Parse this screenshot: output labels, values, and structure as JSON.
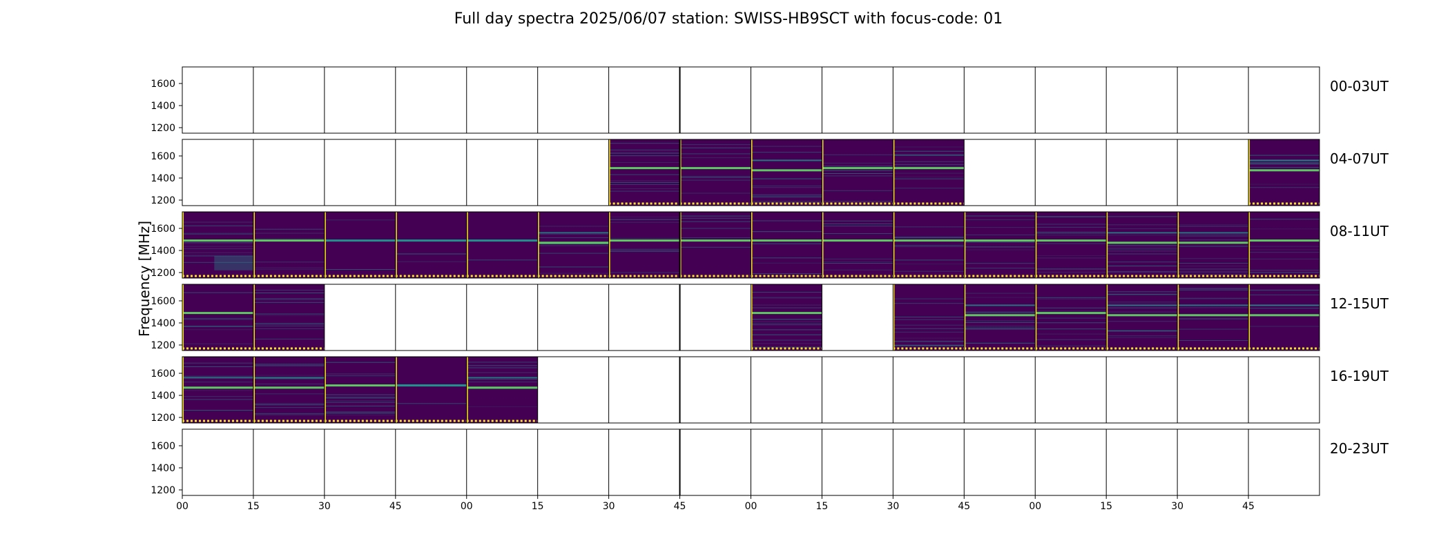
{
  "title": "Full day spectra 2025/06/07 station: SWISS-HB9SCT with focus-code: 01",
  "chart_data": {
    "type": "heatmap",
    "title": "Full day spectra 2025/06/07 station: SWISS-HB9SCT with focus-code: 01",
    "ylabel": "Frequency [MHz]",
    "ylim": [
      1150,
      1750
    ],
    "yticks": [
      1200,
      1400,
      1600
    ],
    "xtick_labels": [
      "00",
      "15",
      "30",
      "45",
      "00",
      "15",
      "30",
      "45",
      "00",
      "15",
      "30",
      "45",
      "00",
      "15",
      "30",
      "45"
    ],
    "row_labels": [
      "00-03UT",
      "04-07UT",
      "08-11UT",
      "12-15UT",
      "16-19UT",
      "20-23UT"
    ],
    "colormap": "viridis",
    "colors": {
      "background": "#440154",
      "mid": "#21918c",
      "high": "#fde725",
      "accent": "#5ec962"
    },
    "rows": [
      {
        "label": "00-03UT",
        "filled": [
          false,
          false,
          false,
          false,
          false,
          false,
          false,
          false,
          false,
          false,
          false,
          false,
          false,
          false,
          false,
          false
        ],
        "style": [
          0,
          0,
          0,
          0,
          0,
          0,
          0,
          0,
          0,
          0,
          0,
          0,
          0,
          0,
          0,
          0
        ]
      },
      {
        "label": "04-07UT",
        "filled": [
          false,
          false,
          false,
          false,
          false,
          false,
          true,
          true,
          true,
          true,
          true,
          false,
          false,
          false,
          false,
          true
        ],
        "style": [
          0,
          0,
          0,
          0,
          0,
          0,
          1,
          1,
          2,
          1,
          1,
          0,
          0,
          0,
          0,
          2
        ]
      },
      {
        "label": "08-11UT",
        "filled": [
          true,
          true,
          true,
          true,
          true,
          true,
          true,
          true,
          true,
          true,
          true,
          true,
          true,
          true,
          true,
          true
        ],
        "style": [
          3,
          1,
          4,
          4,
          4,
          2,
          1,
          1,
          1,
          1,
          1,
          1,
          1,
          2,
          2,
          1
        ]
      },
      {
        "label": "12-15UT",
        "filled": [
          true,
          true,
          false,
          false,
          false,
          false,
          false,
          false,
          true,
          false,
          true,
          true,
          true,
          true,
          true,
          true
        ],
        "style": [
          1,
          5,
          0,
          0,
          0,
          0,
          0,
          0,
          1,
          0,
          5,
          2,
          1,
          2,
          2,
          2
        ]
      },
      {
        "label": "16-19UT",
        "filled": [
          true,
          true,
          true,
          true,
          true,
          false,
          false,
          false,
          false,
          false,
          false,
          false,
          false,
          false,
          false,
          false
        ],
        "style": [
          2,
          2,
          1,
          4,
          2,
          0,
          0,
          0,
          0,
          0,
          0,
          0,
          0,
          0,
          0,
          0
        ]
      },
      {
        "label": "20-23UT",
        "filled": [
          false,
          false,
          false,
          false,
          false,
          false,
          false,
          false,
          false,
          false,
          false,
          false,
          false,
          false,
          false,
          false
        ],
        "style": [
          0,
          0,
          0,
          0,
          0,
          0,
          0,
          0,
          0,
          0,
          0,
          0,
          0,
          0,
          0,
          0
        ]
      }
    ]
  }
}
